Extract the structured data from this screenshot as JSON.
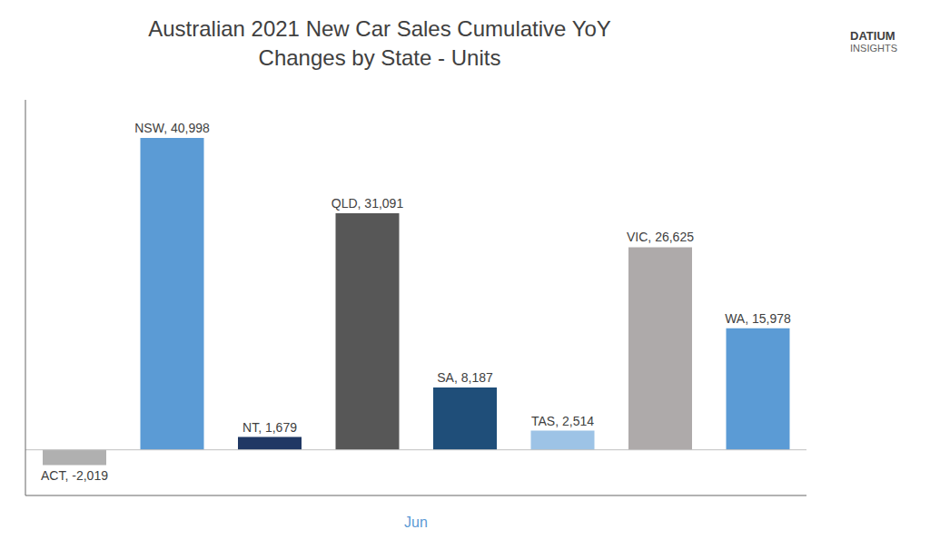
{
  "chart_data": {
    "type": "bar",
    "title": "Australian 2021 New Car Sales Cumulative YoY",
    "subtitle": "Changes by State - Units",
    "x_label": "Jun",
    "categories": [
      "ACT",
      "NSW",
      "NT",
      "QLD",
      "SA",
      "TAS",
      "VIC",
      "WA"
    ],
    "values": [
      -2019,
      40998,
      1679,
      31091,
      8187,
      2514,
      26625,
      15978
    ],
    "value_labels": [
      "ACT, -2,019",
      "NSW, 40,998",
      "NT, 1,679",
      "QLD, 31,091",
      "SA, 8,187",
      "TAS, 2,514",
      "VIC, 26,625",
      "WA, 15,978"
    ],
    "data_labels": true,
    "colors": [
      "#b0b0b0",
      "#5b9bd5",
      "#203864",
      "#575757",
      "#1f4e79",
      "#9dc3e6",
      "#aeaaaa",
      "#5b9bd5"
    ],
    "ylim": [
      -6000,
      46000
    ],
    "tick_labels": false,
    "grid": false,
    "annotations": [
      "DATIUM",
      "INSIGHTS"
    ]
  }
}
